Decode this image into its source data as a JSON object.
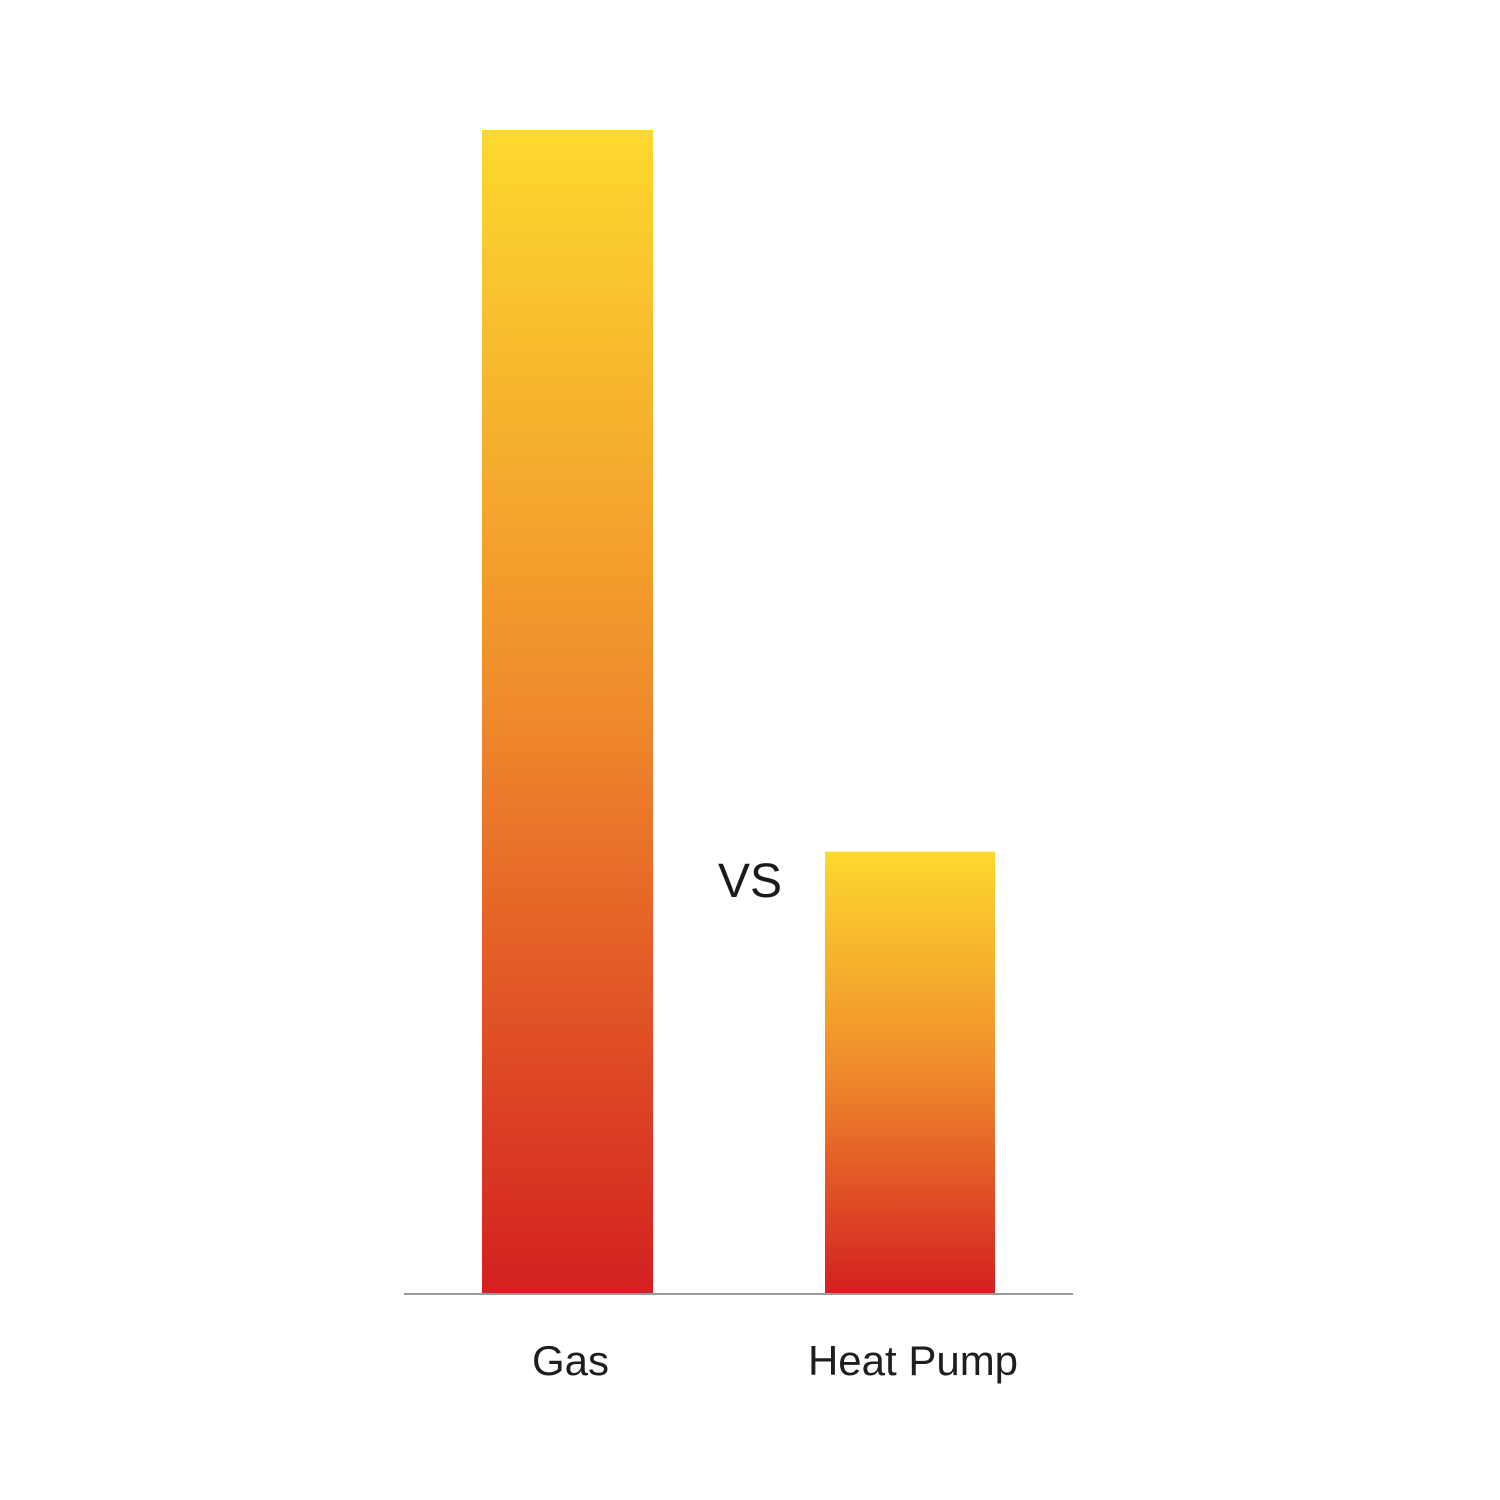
{
  "chart_data": {
    "type": "bar",
    "categories": [
      "Gas",
      "Heat Pump"
    ],
    "values": [
      100,
      38
    ],
    "ylim": [
      0,
      100
    ],
    "annotation": "VS",
    "grid": false,
    "legend": "none",
    "bar_gradient": {
      "top_color": "#fdd92e",
      "mid_color": "#ef8a2c",
      "bottom_color": "#d32020"
    },
    "baseline_color": "#9a9a9a"
  }
}
